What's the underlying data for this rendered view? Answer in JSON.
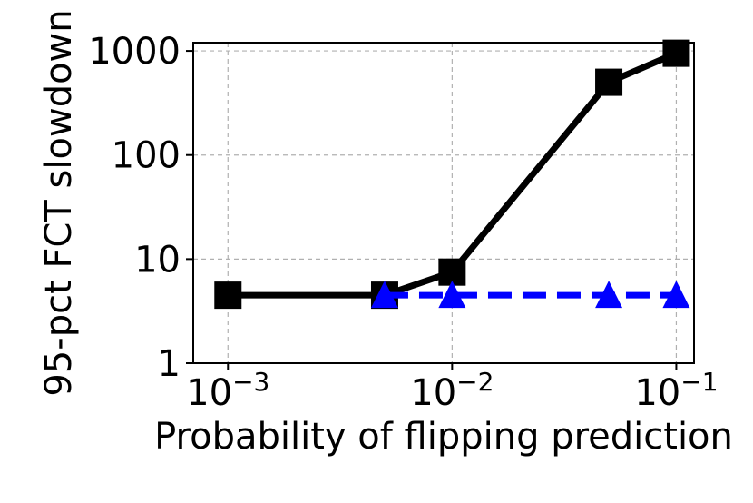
{
  "chart_data": {
    "type": "line",
    "xlabel": "Probability of flipping prediction",
    "ylabel": "95-pct FCT slowdown",
    "x_scale": "log",
    "y_scale": "log",
    "xlim": [
      0.0007,
      0.12
    ],
    "ylim": [
      1,
      1200
    ],
    "grid": true,
    "x_ticks": [
      {
        "value": 0.001,
        "base": "10",
        "exp": "−3"
      },
      {
        "value": 0.01,
        "base": "10",
        "exp": "−2"
      },
      {
        "value": 0.1,
        "base": "10",
        "exp": "−1"
      }
    ],
    "y_ticks": [
      {
        "value": 1,
        "label": "1"
      },
      {
        "value": 10,
        "label": "10"
      },
      {
        "value": 100,
        "label": "100"
      },
      {
        "value": 1000,
        "label": "1000"
      }
    ],
    "series": [
      {
        "marker": "square",
        "line_style": "solid",
        "color": "#000000",
        "x": [
          0.001,
          0.005,
          0.01,
          0.05,
          0.1
        ],
        "y": [
          4.5,
          4.5,
          7.5,
          500,
          950
        ]
      },
      {
        "marker": "triangle",
        "line_style": "dashed",
        "color": "#0000ff",
        "x": [
          0.005,
          0.01,
          0.05,
          0.1
        ],
        "y": [
          4.5,
          4.5,
          4.5,
          4.5
        ]
      }
    ]
  }
}
